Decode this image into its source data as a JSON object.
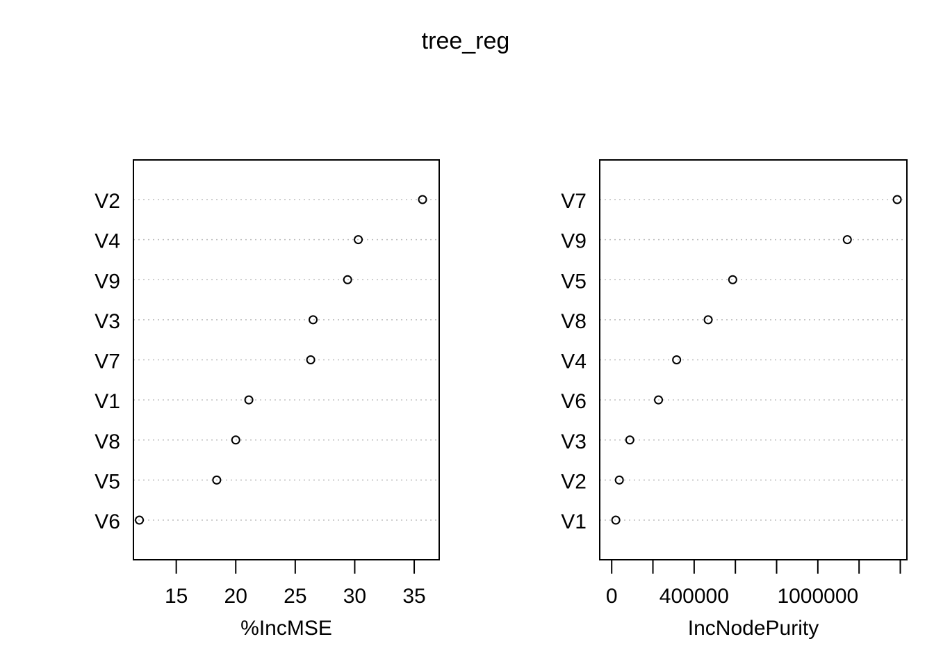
{
  "title": "tree_reg",
  "chart_data": [
    {
      "type": "scatter",
      "style": "dotchart",
      "xlabel": "%IncMSE",
      "xlim": [
        11.4,
        37.1
      ],
      "xticks": [
        15,
        20,
        25,
        30,
        35
      ],
      "xtick_labels": [
        "15",
        "20",
        "25",
        "30",
        "35"
      ],
      "categories": [
        "V2",
        "V4",
        "V9",
        "V3",
        "V7",
        "V1",
        "V8",
        "V5",
        "V6"
      ],
      "values": [
        35.7,
        30.3,
        29.4,
        26.5,
        26.3,
        21.1,
        20.0,
        18.4,
        11.9
      ],
      "grid": "dotted horizontal"
    },
    {
      "type": "scatter",
      "style": "dotchart",
      "xlabel": "IncNodePurity",
      "xlim": [
        -58000,
        1432000
      ],
      "xticks": [
        0,
        200000,
        400000,
        600000,
        800000,
        1000000,
        1200000,
        1400000
      ],
      "xtick_labels": [
        "0",
        "",
        "400000",
        "",
        "",
        "1000000",
        "",
        ""
      ],
      "categories": [
        "V7",
        "V9",
        "V5",
        "V8",
        "V4",
        "V6",
        "V3",
        "V2",
        "V1"
      ],
      "values": [
        1385000,
        1143000,
        587000,
        468000,
        315000,
        227000,
        88000,
        37000,
        20000
      ],
      "grid": "dotted horizontal"
    }
  ]
}
